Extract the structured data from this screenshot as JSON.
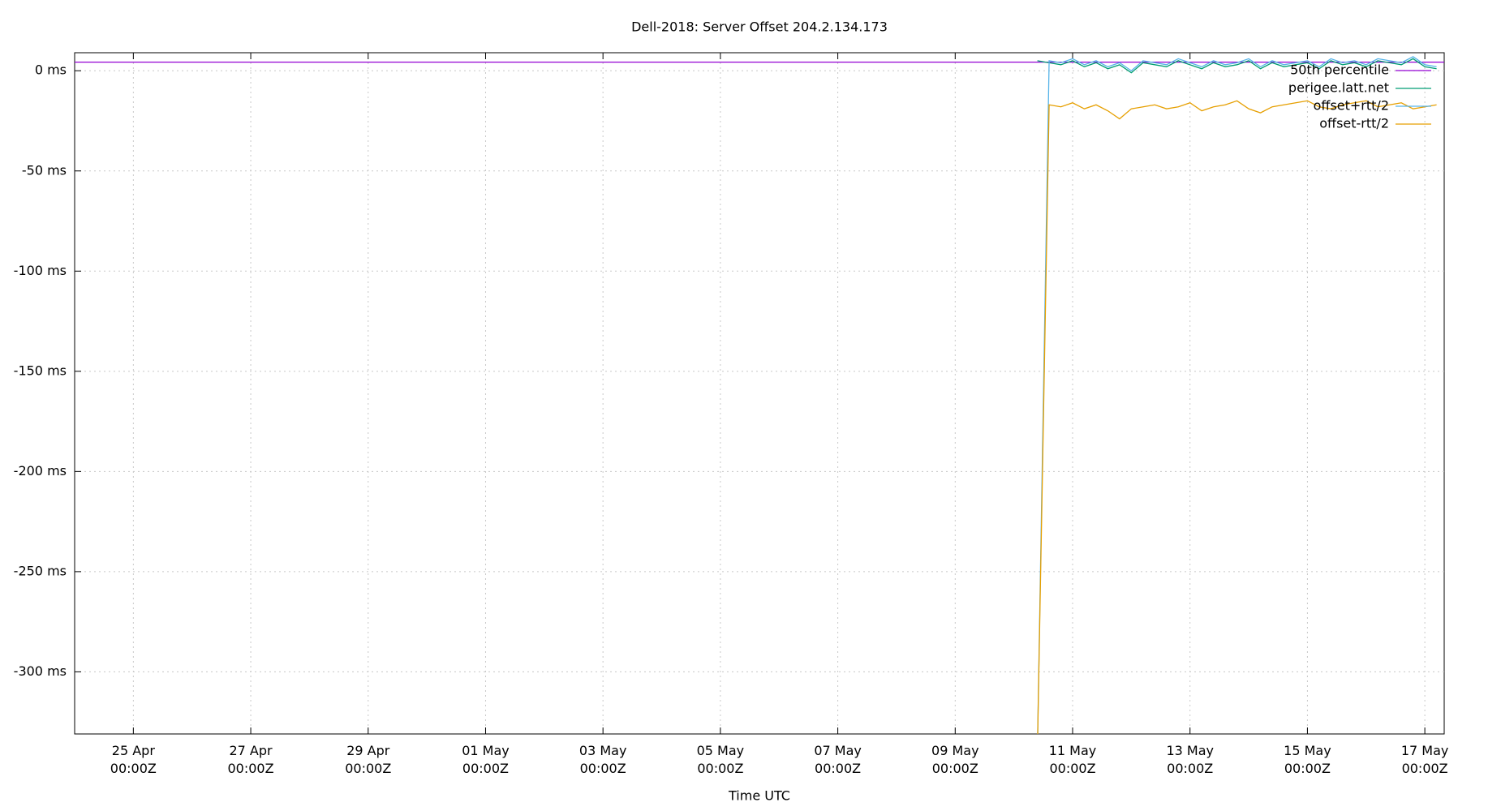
{
  "chart_data": {
    "type": "line",
    "title": "Dell-2018: Server Offset 204.2.134.173",
    "x_label": "Time UTC",
    "xlim": [
      114,
      137.33
    ],
    "ylim": [
      -331,
      9
    ],
    "xticks": [
      {
        "value": 115,
        "label": "25 Apr\n00:00Z"
      },
      {
        "value": 117,
        "label": "27 Apr\n00:00Z"
      },
      {
        "value": 119,
        "label": "29 Apr\n00:00Z"
      },
      {
        "value": 121,
        "label": "01 May\n00:00Z"
      },
      {
        "value": 123,
        "label": "03 May\n00:00Z"
      },
      {
        "value": 125,
        "label": "05 May\n00:00Z"
      },
      {
        "value": 127,
        "label": "07 May\n00:00Z"
      },
      {
        "value": 129,
        "label": "09 May\n00:00Z"
      },
      {
        "value": 131,
        "label": "11 May\n00:00Z"
      },
      {
        "value": 133,
        "label": "13 May\n00:00Z"
      },
      {
        "value": 135,
        "label": "15 May\n00:00Z"
      },
      {
        "value": 137,
        "label": "17 May\n00:00Z"
      }
    ],
    "yticks": [
      {
        "value": 0,
        "label": "0 ms"
      },
      {
        "value": -50,
        "label": "-50 ms"
      },
      {
        "value": -100,
        "label": "-100 ms"
      },
      {
        "value": -150,
        "label": "-150 ms"
      },
      {
        "value": -200,
        "label": "-200 ms"
      },
      {
        "value": -250,
        "label": "-250 ms"
      },
      {
        "value": -300,
        "label": "-300 ms"
      }
    ],
    "grid": true,
    "legend": "top right",
    "series": [
      {
        "name": "50th percentile",
        "color": "#9400d3",
        "x": [
          114,
          137.33
        ],
        "values": [
          4.3,
          4.3
        ]
      },
      {
        "name": "perigee.latt.net",
        "color": "#009e73",
        "x": [
          130.4,
          130.6,
          130.8,
          131.0,
          131.2,
          131.4,
          131.6,
          131.8,
          132.0,
          132.2,
          132.4,
          132.6,
          132.8,
          133.0,
          133.2,
          133.4,
          133.6,
          133.8,
          134.0,
          134.2,
          134.4,
          134.6,
          134.8,
          135.0,
          135.2,
          135.4,
          135.6,
          135.8,
          136.0,
          136.2,
          136.4,
          136.6,
          136.8,
          137.0,
          137.2
        ],
        "values": [
          5,
          4,
          3,
          5,
          2,
          4,
          1,
          3,
          -1,
          4,
          3,
          2,
          5,
          3,
          1,
          4,
          2,
          3,
          5,
          1,
          4,
          2,
          3,
          4,
          1,
          5,
          3,
          4,
          2,
          5,
          4,
          3,
          6,
          2,
          1
        ]
      },
      {
        "name": "offset+rtt/2",
        "color": "#56b4e9",
        "x": [
          130.4,
          130.6,
          130.8,
          131.0,
          131.2,
          131.4,
          131.6,
          131.8,
          132.0,
          132.2,
          132.4,
          132.6,
          132.8,
          133.0,
          133.2,
          133.4,
          133.6,
          133.8,
          134.0,
          134.2,
          134.4,
          134.6,
          134.8,
          135.0,
          135.2,
          135.4,
          135.6,
          135.8,
          136.0,
          136.2,
          136.4,
          136.6,
          136.8,
          137.0,
          137.2
        ],
        "values": [
          -340,
          5,
          4,
          6,
          3,
          5,
          2,
          4,
          0,
          5,
          4,
          3,
          6,
          4,
          2,
          5,
          3,
          4,
          6,
          2,
          5,
          3,
          4,
          5,
          2,
          6,
          4,
          5,
          3,
          6,
          5,
          4,
          7,
          3,
          2
        ]
      },
      {
        "name": "offset-rtt/2",
        "color": "#e69f00",
        "x": [
          130.4,
          130.6,
          130.8,
          131.0,
          131.2,
          131.4,
          131.6,
          131.8,
          132.0,
          132.2,
          132.4,
          132.6,
          132.8,
          133.0,
          133.2,
          133.4,
          133.6,
          133.8,
          134.0,
          134.2,
          134.4,
          134.6,
          134.8,
          135.0,
          135.2,
          135.4,
          135.6,
          135.8,
          136.0,
          136.2,
          136.4,
          136.6,
          136.8,
          137.0,
          137.2
        ],
        "values": [
          -340,
          -17,
          -18,
          -16,
          -19,
          -17,
          -20,
          -24,
          -19,
          -18,
          -17,
          -19,
          -18,
          -16,
          -20,
          -18,
          -17,
          -15,
          -19,
          -21,
          -18,
          -17,
          -16,
          -15,
          -18,
          -19,
          -17,
          -16,
          -15,
          -18,
          -17,
          -16,
          -19,
          -18,
          -17
        ]
      }
    ]
  }
}
